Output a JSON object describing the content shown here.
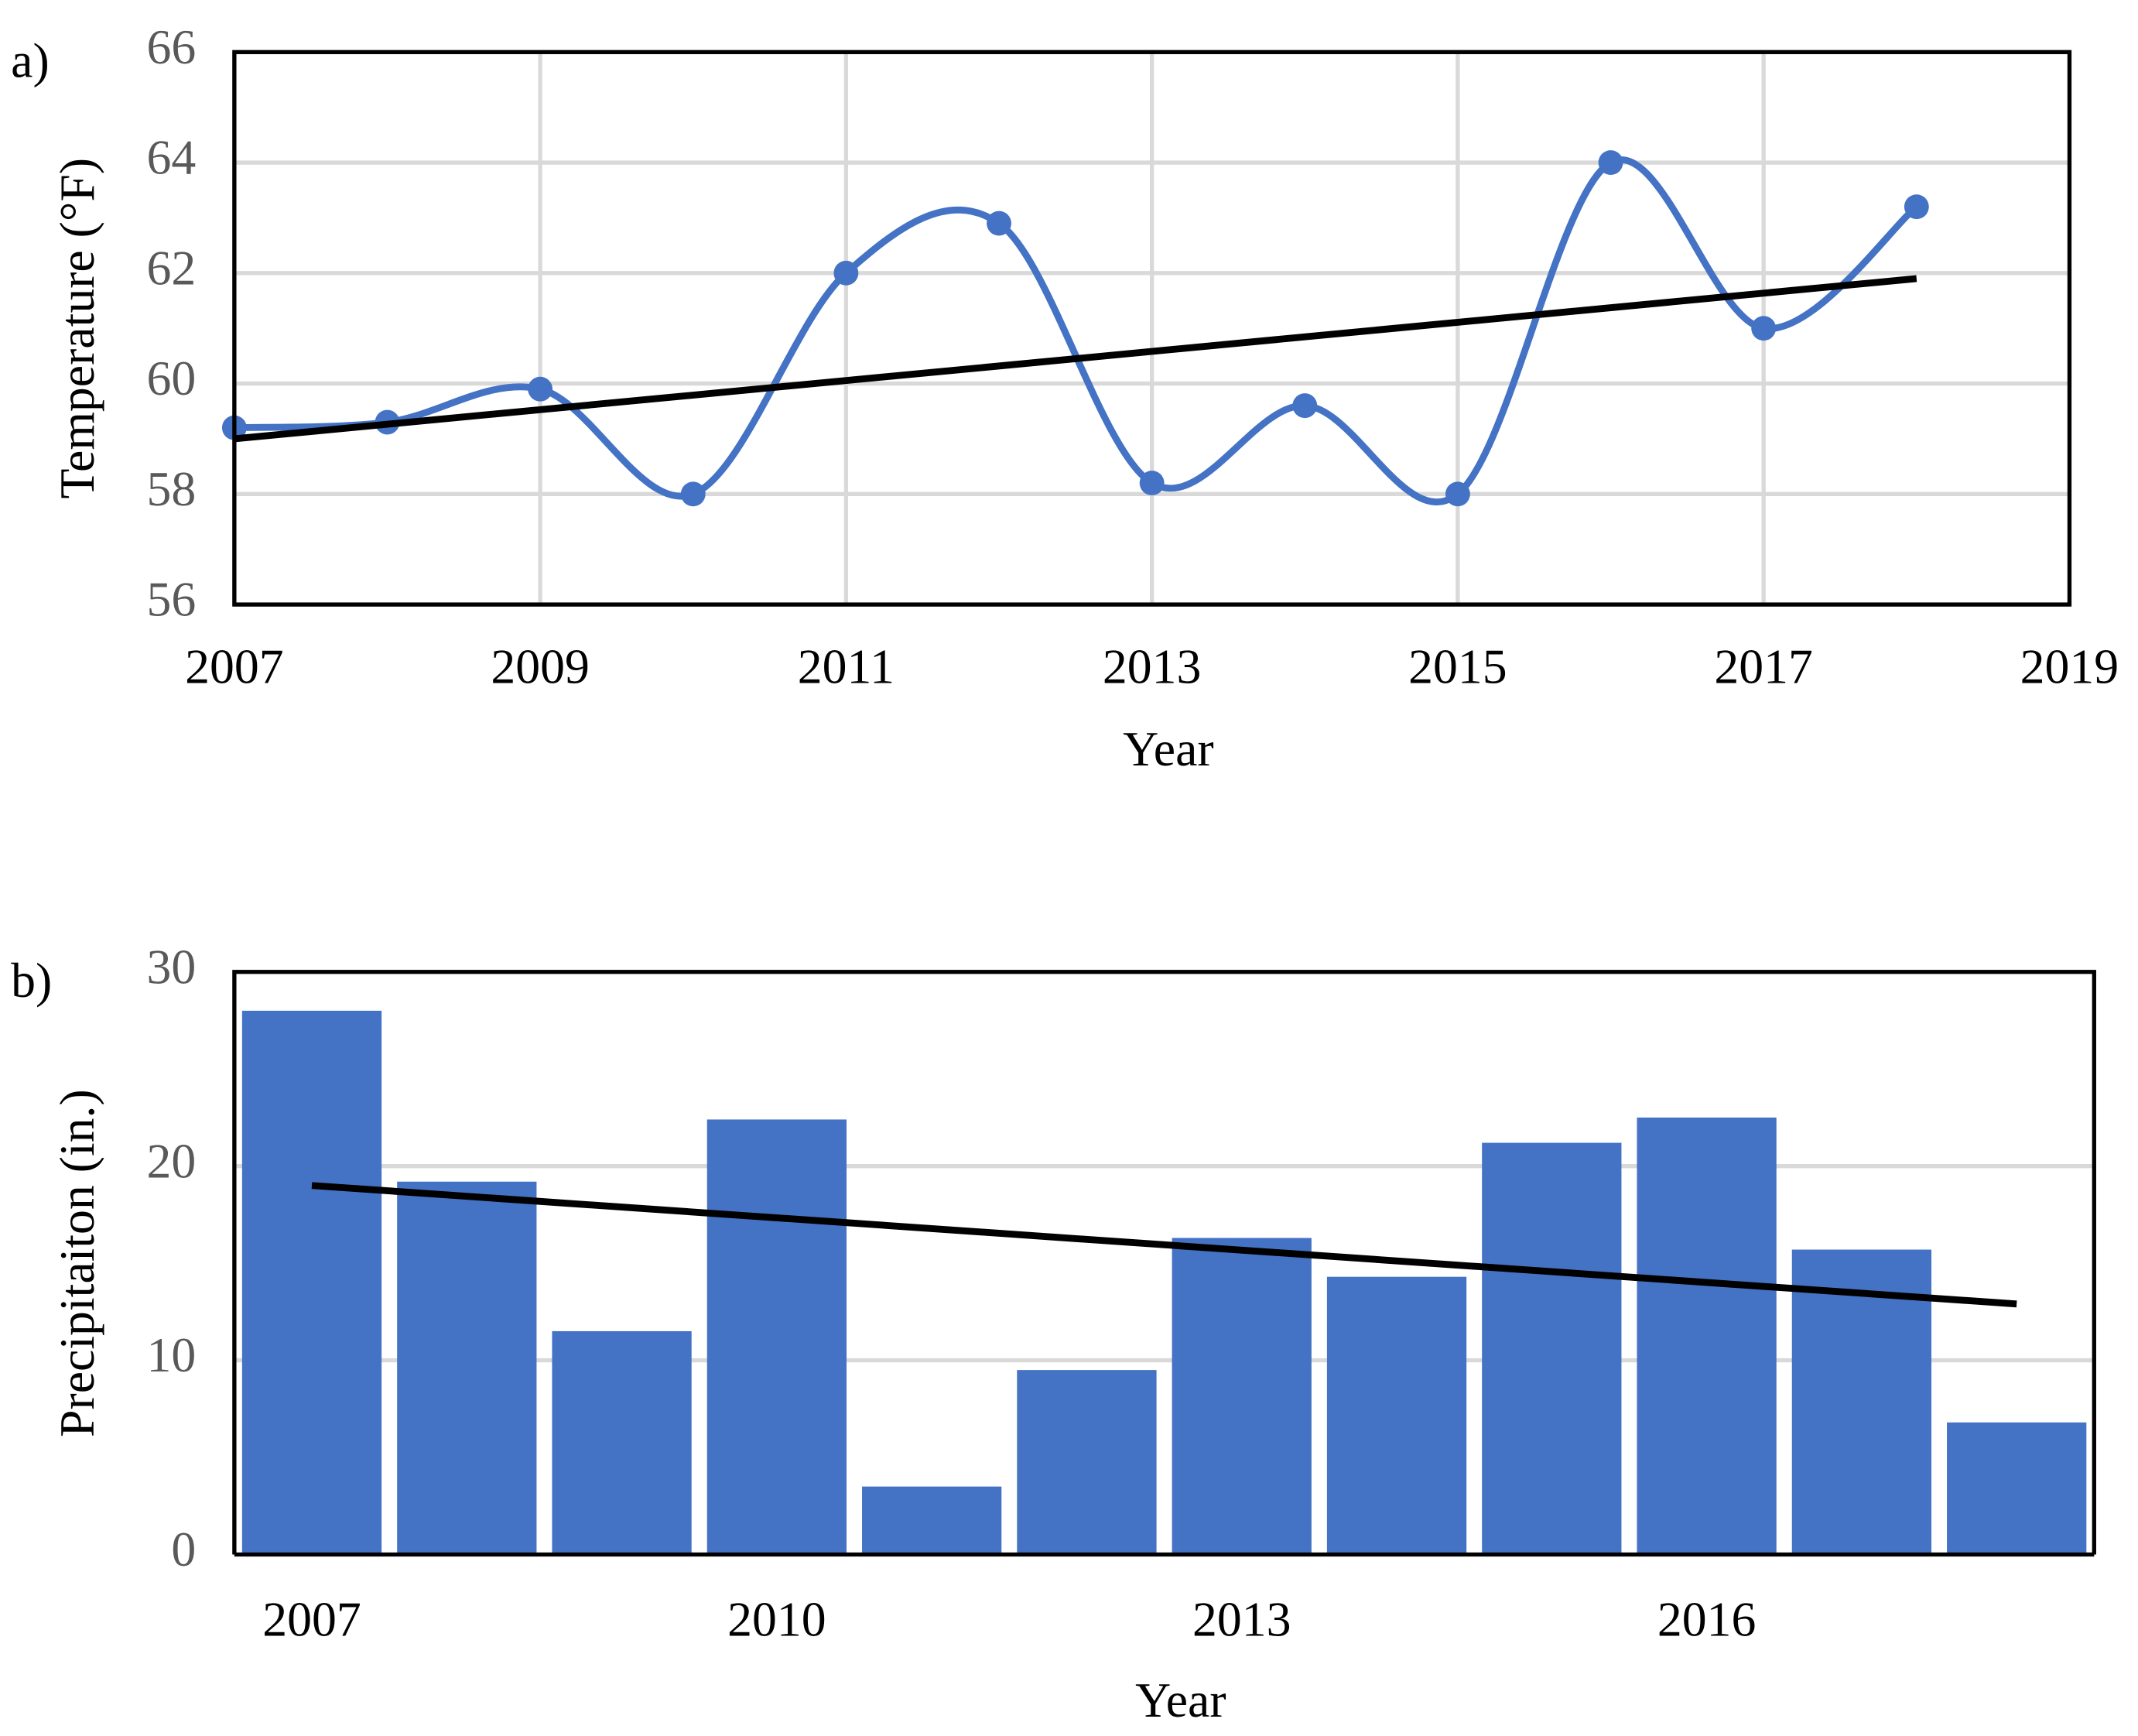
{
  "chart_data": [
    {
      "type": "line",
      "label": "a)",
      "x_label": "Year",
      "y_label": "Temperature (°F)",
      "x": [
        2007,
        2008,
        2009,
        2010,
        2011,
        2012,
        2013,
        2014,
        2015,
        2016,
        2017,
        2018
      ],
      "values": [
        59.2,
        59.3,
        59.9,
        58.0,
        62.0,
        62.9,
        58.2,
        59.6,
        58.0,
        64.0,
        61.0,
        63.2
      ],
      "color": "#4472c4",
      "trendline": {
        "x": [
          2007,
          2018
        ],
        "values": [
          59.0,
          61.9
        ],
        "color": "#000000"
      },
      "xlim": [
        2007,
        2019
      ],
      "xticks": [
        2007,
        2009,
        2011,
        2013,
        2015,
        2017,
        2019
      ],
      "ylim": [
        56,
        66
      ],
      "yticks": [
        56,
        58,
        60,
        62,
        64,
        66
      ],
      "grid": true,
      "smooth": true
    },
    {
      "type": "bar",
      "label": "b)",
      "x_label": "Year",
      "y_label": "Precipitaiton (in.)",
      "categories": [
        "2007",
        null,
        null,
        "2010",
        null,
        null,
        "2013",
        null,
        null,
        "2016",
        null,
        null
      ],
      "values": [
        28.0,
        19.2,
        11.5,
        22.4,
        3.5,
        9.5,
        16.3,
        14.3,
        21.2,
        22.5,
        15.7,
        6.8
      ],
      "color": "#4472c4",
      "trendline": {
        "values": [
          19.0,
          12.9
        ],
        "color": "#000000"
      },
      "ylim": [
        0,
        30
      ],
      "yticks": [
        0,
        10,
        20,
        30
      ],
      "grid": true
    }
  ]
}
